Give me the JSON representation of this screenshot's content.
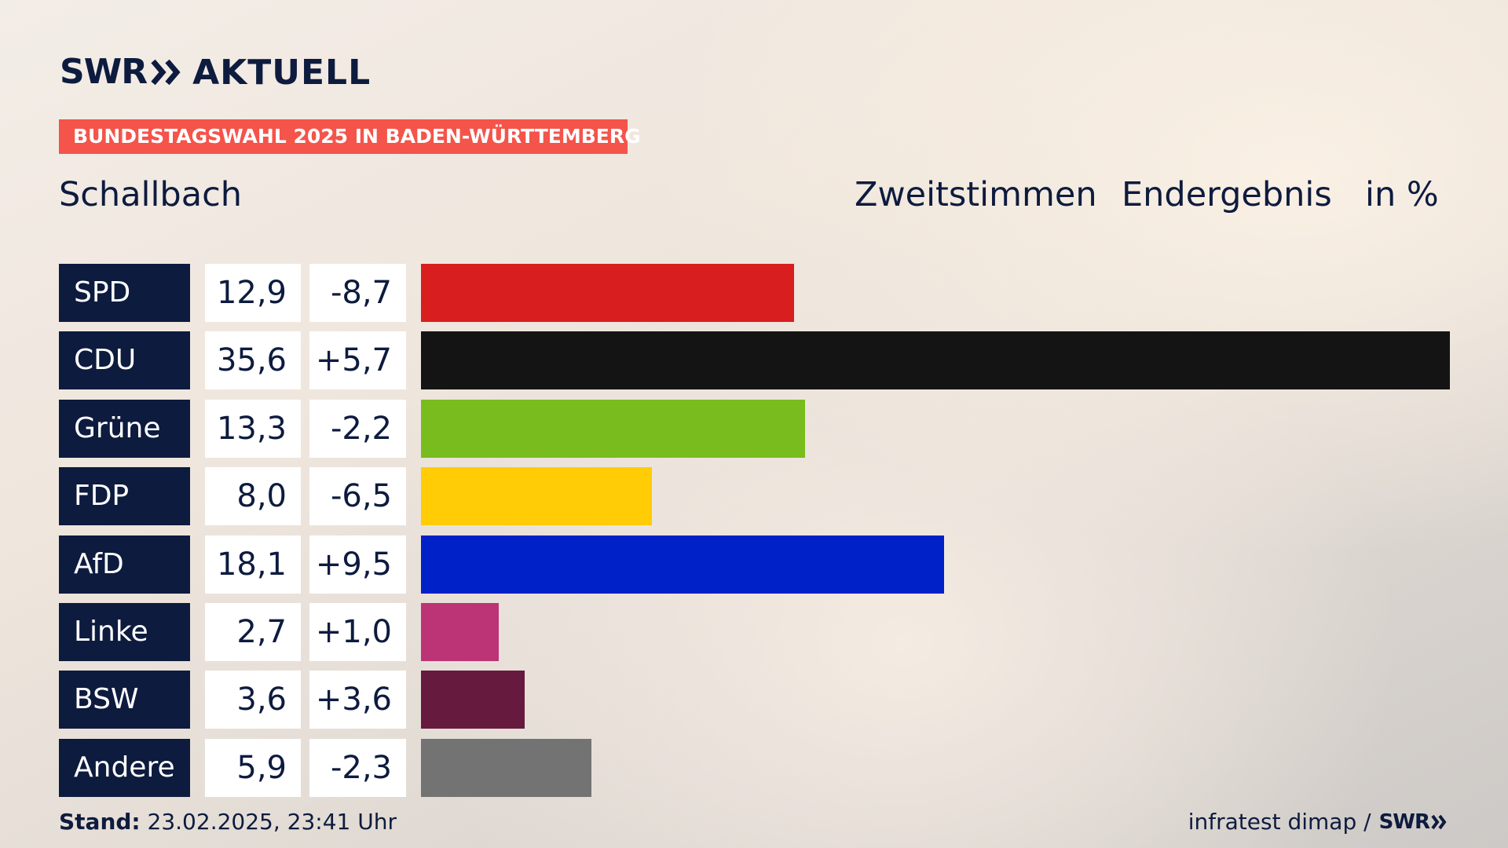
{
  "brand": {
    "swr": "SWR",
    "aktuell": "AKTUELL",
    "color": "#0d1b3e"
  },
  "banner": {
    "text": "BUNDESTAGSWAHL 2025 IN BADEN-WÜRTTEMBERG",
    "color": "#f4544a"
  },
  "place": "Schallbach",
  "header": {
    "vote_type": "Zweitstimmen",
    "status": "Endergebnis",
    "unit": "in %"
  },
  "chart_data": {
    "type": "bar",
    "orientation": "horizontal",
    "categories": [
      "SPD",
      "CDU",
      "Grüne",
      "FDP",
      "AfD",
      "Linke",
      "BSW",
      "Andere"
    ],
    "values": [
      12.9,
      35.6,
      13.3,
      8.0,
      18.1,
      2.7,
      3.6,
      5.9
    ],
    "value_labels": [
      "12,9",
      "35,6",
      "13,3",
      "8,0",
      "18,1",
      "2,7",
      "3,6",
      "5,9"
    ],
    "diff_labels": [
      "-8,7",
      "+5,7",
      "-2,2",
      "-6,5",
      "+9,5",
      "+1,0",
      "+3,6",
      "-2,3"
    ],
    "colors": [
      "#d81e1e",
      "#141414",
      "#78bc1e",
      "#ffcc05",
      "#0021c8",
      "#bc3475",
      "#651a3e",
      "#737373"
    ],
    "xlim": [
      0,
      35.6
    ],
    "grid": false,
    "legend": "none"
  },
  "footer": {
    "stand_label": "Stand:",
    "stand_value": "23.02.2025, 23:41 Uhr",
    "source": "infratest dimap /",
    "source_brand": "SWR"
  }
}
